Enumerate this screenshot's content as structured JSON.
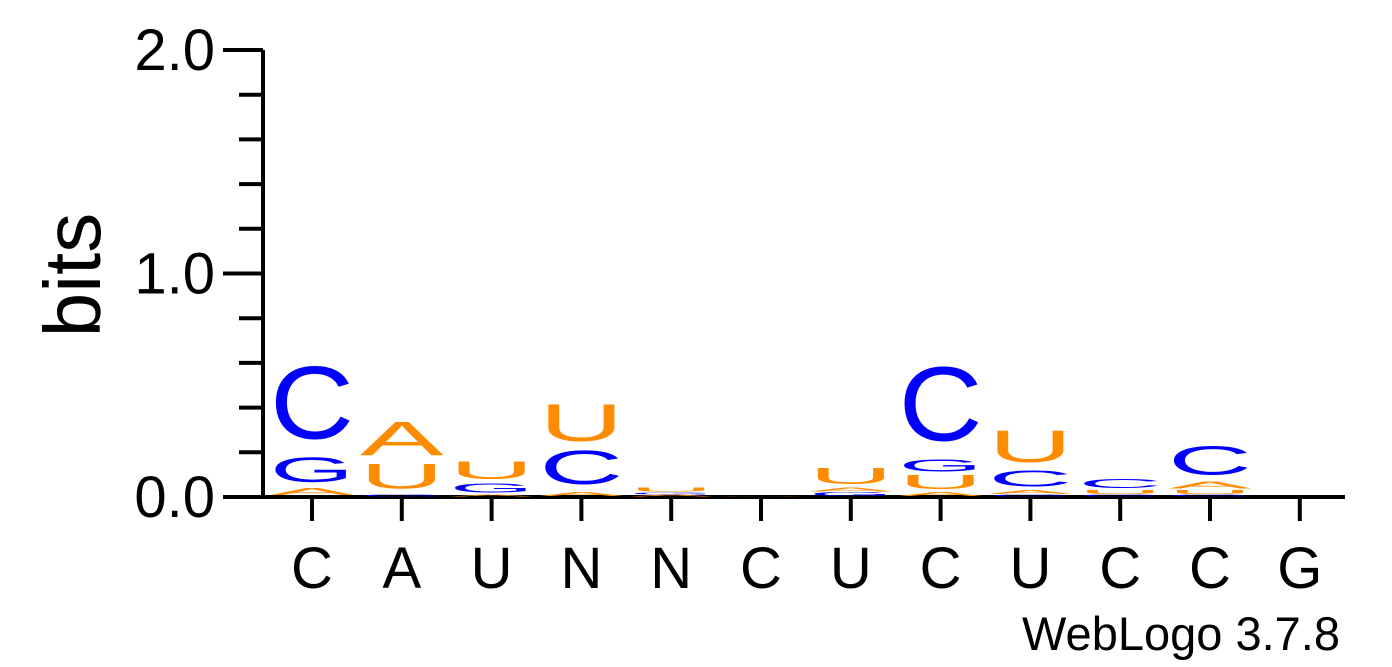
{
  "chart_data": {
    "type": "sequence-logo",
    "ylabel": "bits",
    "ylim": [
      0,
      2
    ],
    "yticks": [
      "0.0",
      "1.0",
      "2.0"
    ],
    "minor_tick_step": 0.2,
    "xlabels": [
      "C",
      "A",
      "U",
      "N",
      "N",
      "C",
      "U",
      "C",
      "U",
      "C",
      "C",
      "G"
    ],
    "footer": "WebLogo 3.7.8",
    "colors": {
      "C": "#0000FF",
      "G": "#0000FF",
      "A": "#FF8C00",
      "U": "#FF8C00"
    },
    "positions": [
      {
        "stack": [
          [
            "A",
            0.04
          ],
          [
            "G",
            0.14
          ],
          [
            "C",
            0.41
          ]
        ]
      },
      {
        "stack": [
          [
            "G",
            0.01
          ],
          [
            "U",
            0.14
          ],
          [
            "A",
            0.19
          ]
        ]
      },
      {
        "stack": [
          [
            "A",
            0.01
          ],
          [
            "G",
            0.05
          ],
          [
            "U",
            0.1
          ]
        ]
      },
      {
        "stack": [
          [
            "A",
            0.02
          ],
          [
            "C",
            0.19
          ],
          [
            "U",
            0.21
          ]
        ]
      },
      {
        "stack": [
          [
            "A",
            0.01
          ],
          [
            "G",
            0.01
          ],
          [
            "U",
            0.02
          ]
        ]
      },
      {
        "stack": [
          [
            "A",
            0.005
          ]
        ]
      },
      {
        "stack": [
          [
            "G",
            0.02
          ],
          [
            "A",
            0.02
          ],
          [
            "U",
            0.09
          ]
        ]
      },
      {
        "stack": [
          [
            "A",
            0.02
          ],
          [
            "U",
            0.08
          ],
          [
            "G",
            0.07
          ],
          [
            "C",
            0.42
          ]
        ]
      },
      {
        "stack": [
          [
            "G",
            0.01
          ],
          [
            "A",
            0.02
          ],
          [
            "C",
            0.09
          ],
          [
            "U",
            0.18
          ]
        ]
      },
      {
        "stack": [
          [
            "G",
            0.01
          ],
          [
            "U",
            0.02
          ],
          [
            "C",
            0.05
          ]
        ]
      },
      {
        "stack": [
          [
            "G",
            0.01
          ],
          [
            "U",
            0.02
          ],
          [
            "A",
            0.04
          ],
          [
            "C",
            0.16
          ]
        ]
      },
      {
        "stack": []
      }
    ]
  }
}
